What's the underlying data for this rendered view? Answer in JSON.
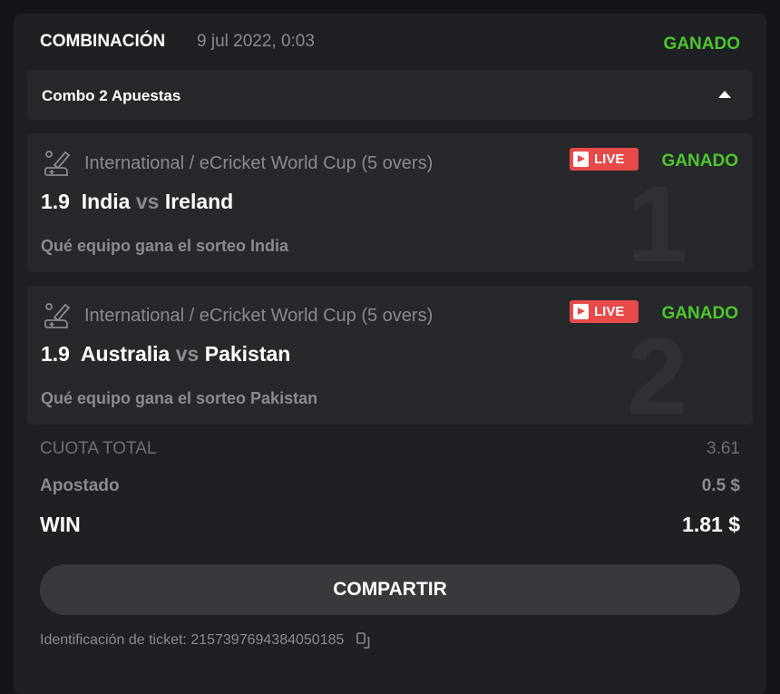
{
  "header": {
    "title": "COMBINACIÓN",
    "date": "9 jul 2022, 0:03",
    "status": "GANADO"
  },
  "combo": {
    "label": "Combo 2 Apuestas"
  },
  "bets": [
    {
      "index": "1",
      "league": "International / eCricket World Cup (5 overs)",
      "live": "LIVE",
      "status": "GANADO",
      "odds": "1.9",
      "home": "India",
      "vs": "vs",
      "away": "Ireland",
      "market": "Qué equipo gana el sorteo India"
    },
    {
      "index": "2",
      "league": "International / eCricket World Cup (5 overs)",
      "live": "LIVE",
      "status": "GANADO",
      "odds": "1.9",
      "home": "Australia",
      "vs": "vs",
      "away": "Pakistan",
      "market": "Qué equipo gana el sorteo Pakistan"
    }
  ],
  "summary": {
    "total_odds_label": "CUOTA TOTAL",
    "total_odds": "3.61",
    "staked_label": "Apostado",
    "staked": "0.5 $",
    "win_label": "WIN",
    "win": "1.81 $"
  },
  "share_label": "COMPARTIR",
  "ticket": {
    "label": "Identificación de ticket: 2157397694384050185"
  },
  "colors": {
    "won": "#4cc72d",
    "live": "#e84a4a"
  }
}
